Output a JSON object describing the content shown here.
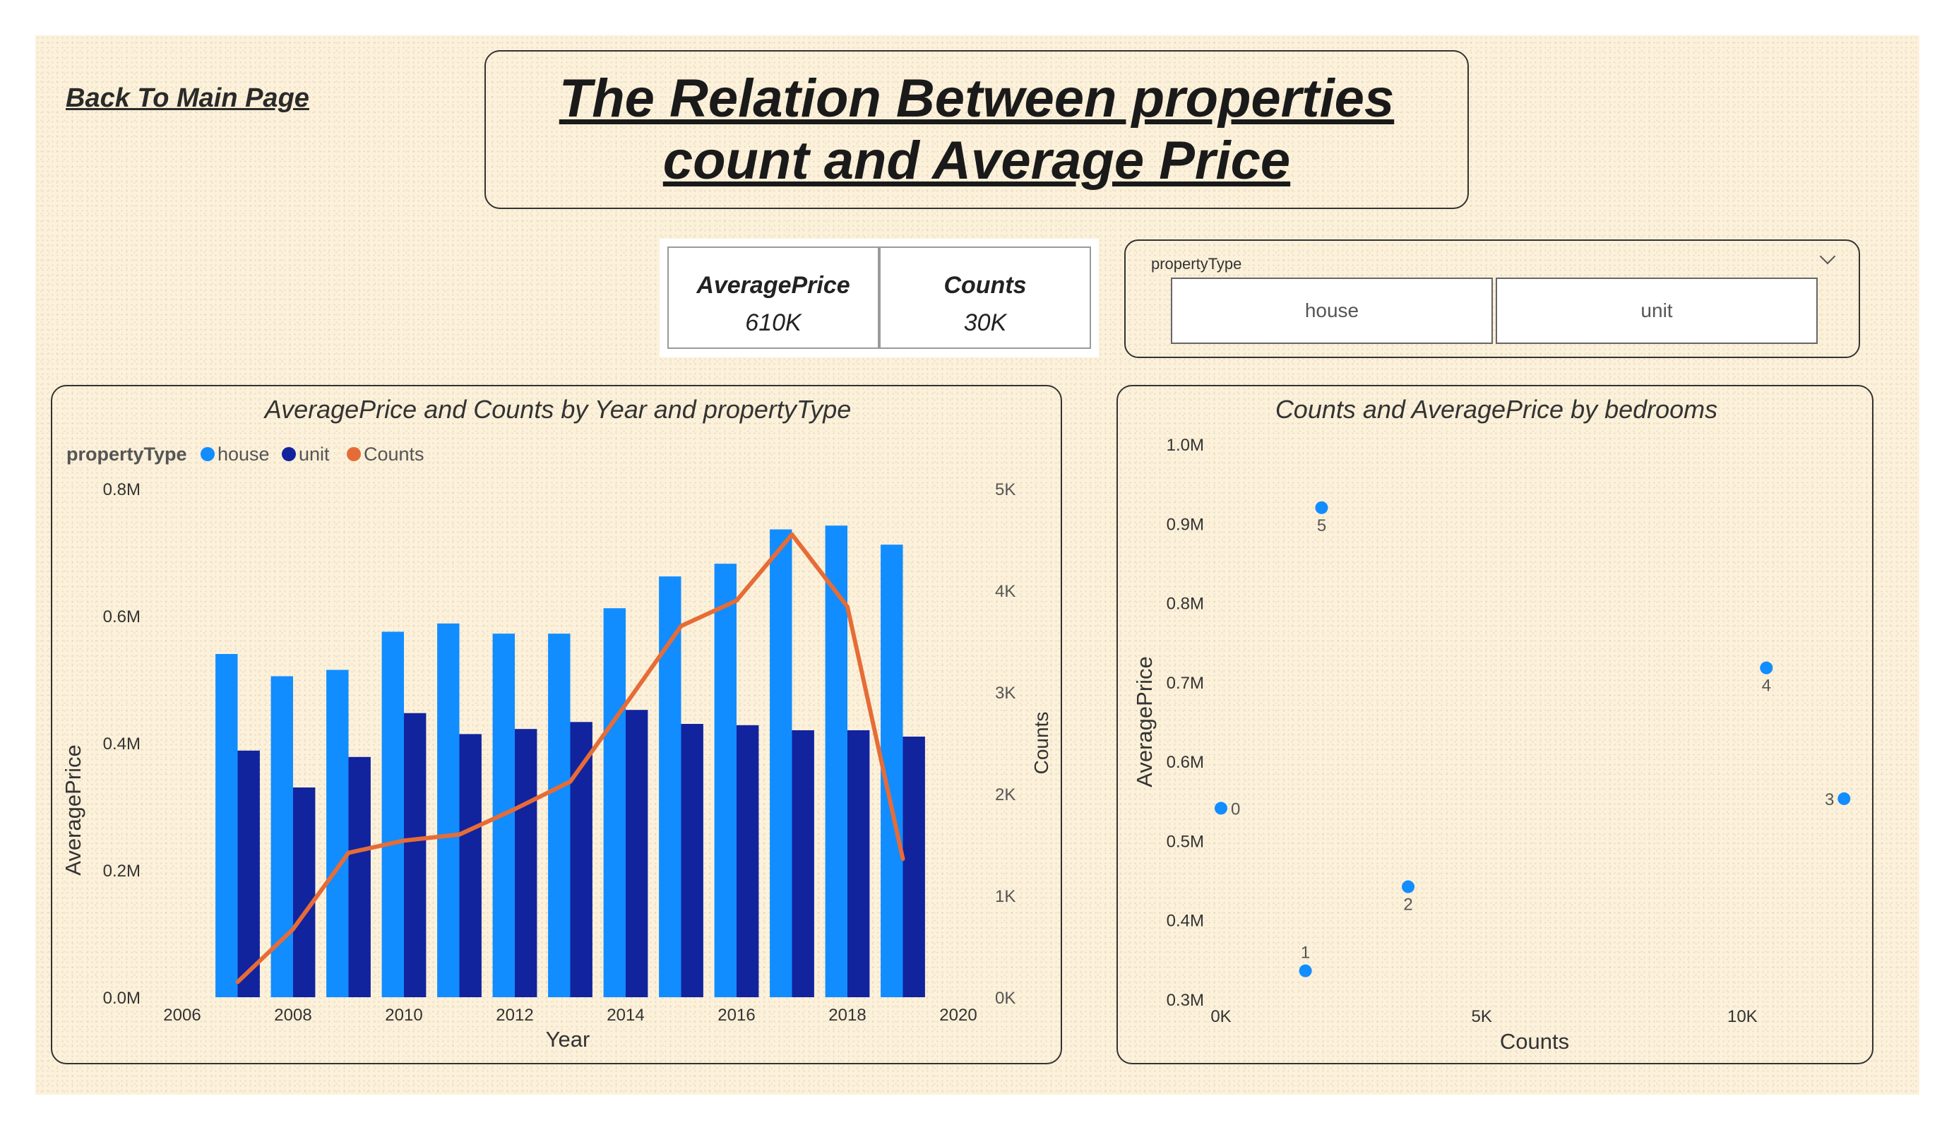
{
  "nav": {
    "back_label": "Back To Main Page"
  },
  "header": {
    "title": "The Relation Between properties \ncount and Average Price"
  },
  "kpis": [
    {
      "label": "AveragePrice",
      "value": "610K"
    },
    {
      "label": "Counts",
      "value": "30K"
    }
  ],
  "slicer": {
    "title": "propertyType",
    "options": [
      "house",
      "unit"
    ]
  },
  "colors": {
    "house": "#118dff",
    "unit": "#12239e",
    "counts": "#e66c37",
    "point": "#118dff"
  },
  "chart_data": [
    {
      "type": "bar",
      "title": "AveragePrice and Counts by Year and propertyType",
      "xlabel": "Year",
      "ylabel": "AveragePrice",
      "y2label": "Counts",
      "legend_title": "propertyType",
      "legend_placement": "top-left",
      "x_ticks": [
        "2006",
        "2008",
        "2010",
        "2012",
        "2014",
        "2016",
        "2018",
        "2020"
      ],
      "y_ticks": [
        "0.0M",
        "0.2M",
        "0.4M",
        "0.6M",
        "0.8M"
      ],
      "y2_ticks": [
        "0K",
        "1K",
        "2K",
        "3K",
        "4K",
        "5K"
      ],
      "xlim": [
        2006,
        2020
      ],
      "ylim": [
        0,
        800000
      ],
      "y2lim": [
        0,
        5000
      ],
      "x": [
        2007,
        2008,
        2009,
        2010,
        2011,
        2012,
        2013,
        2014,
        2015,
        2016,
        2017,
        2018,
        2019
      ],
      "series": [
        {
          "name": "house",
          "axis": "left",
          "values": [
            540000,
            505000,
            515000,
            575000,
            588000,
            572000,
            572000,
            612000,
            662000,
            682000,
            736000,
            742000,
            712000
          ]
        },
        {
          "name": "unit",
          "axis": "left",
          "values": [
            388000,
            330000,
            378000,
            447000,
            414000,
            422000,
            433000,
            452000,
            430000,
            428000,
            420000,
            420000,
            410000
          ]
        },
        {
          "name": "Counts",
          "axis": "right",
          "type": "line",
          "values": [
            150,
            670,
            1420,
            1540,
            1600,
            1850,
            2120,
            2880,
            3650,
            3900,
            4550,
            3840,
            1360
          ]
        }
      ]
    },
    {
      "type": "scatter",
      "title": "Counts and AveragePrice by bedrooms",
      "xlabel": "Counts",
      "ylabel": "AveragePrice",
      "x_ticks": [
        "0K",
        "5K",
        "10K"
      ],
      "y_ticks": [
        "0.3M",
        "0.4M",
        "0.5M",
        "0.6M",
        "0.7M",
        "0.8M",
        "0.9M",
        "1.0M"
      ],
      "xlim": [
        0,
        12000
      ],
      "ylim": [
        300000,
        1000000
      ],
      "points": [
        {
          "label": "0",
          "x": 0,
          "y": 541000
        },
        {
          "label": "1",
          "x": 1620,
          "y": 336000
        },
        {
          "label": "2",
          "x": 3590,
          "y": 442000
        },
        {
          "label": "3",
          "x": 11950,
          "y": 553000
        },
        {
          "label": "4",
          "x": 10460,
          "y": 718000
        },
        {
          "label": "5",
          "x": 1930,
          "y": 920000
        }
      ]
    }
  ]
}
